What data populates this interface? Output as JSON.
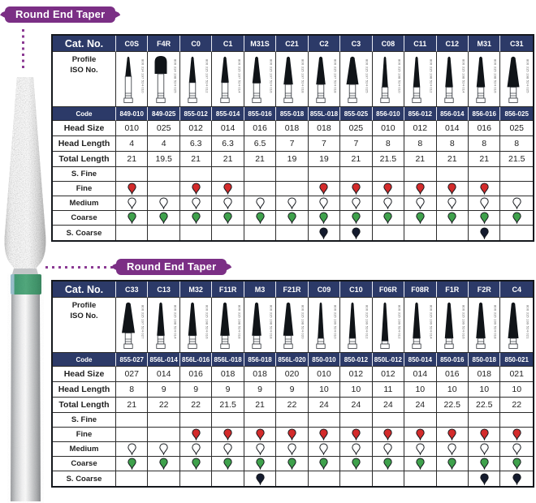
{
  "page": {
    "banner1": "Round End Taper",
    "banner2": "Round End Taper"
  },
  "colors": {
    "navy": "#2c3a68",
    "purple": "#7b2f85",
    "grit_fine": "#d32b2b",
    "grit_medium": "#ffffff",
    "grit_coarse": "#3fa14c",
    "grit_s_coarse": "#141b2e"
  },
  "row_labels": {
    "cat_no": "Cat. No.",
    "profile": "Profile",
    "iso_no": "ISO No.",
    "code": "Code",
    "head_size": "Head Size",
    "head_length": "Head Length",
    "total_length": "Total Length",
    "s_fine": "S. Fine",
    "fine": "Fine",
    "medium": "Medium",
    "coarse": "Coarse",
    "s_coarse": "S. Coarse"
  },
  "tables": [
    {
      "columns": [
        {
          "cat": "C0S",
          "iso": "806 314 197 524 010",
          "code": "849-010",
          "head_size": "010",
          "head_length": "4",
          "total_length": "21",
          "shape": "taper",
          "grits": {
            "s_fine": false,
            "fine": true,
            "medium": true,
            "coarse": true,
            "s_coarse": false
          }
        },
        {
          "cat": "F4R",
          "iso": "806 314 198 524 025",
          "code": "849-025",
          "head_size": "025",
          "head_length": "4",
          "total_length": "19.5",
          "shape": "dome",
          "grits": {
            "s_fine": false,
            "fine": false,
            "medium": true,
            "coarse": true,
            "s_coarse": false
          }
        },
        {
          "cat": "C0",
          "iso": "806 315 197 524 012",
          "code": "855-012",
          "head_size": "012",
          "head_length": "6.3",
          "total_length": "21",
          "shape": "taper",
          "grits": {
            "s_fine": false,
            "fine": true,
            "medium": true,
            "coarse": true,
            "s_coarse": false
          }
        },
        {
          "cat": "C1",
          "iso": "806 315 197 524 014",
          "code": "855-014",
          "head_size": "014",
          "head_length": "6.3",
          "total_length": "21",
          "shape": "taper",
          "grits": {
            "s_fine": false,
            "fine": true,
            "medium": true,
            "coarse": true,
            "s_coarse": false
          }
        },
        {
          "cat": "M31S",
          "iso": "806 315 197 524 016",
          "code": "855-016",
          "head_size": "016",
          "head_length": "6.5",
          "total_length": "21",
          "shape": "taper",
          "grits": {
            "s_fine": false,
            "fine": false,
            "medium": true,
            "coarse": true,
            "s_coarse": false
          }
        },
        {
          "cat": "C21",
          "iso": "806 315 197 524 018",
          "code": "855-018",
          "head_size": "018",
          "head_length": "7",
          "total_length": "19",
          "shape": "taper",
          "grits": {
            "s_fine": false,
            "fine": false,
            "medium": true,
            "coarse": true,
            "s_coarse": false
          }
        },
        {
          "cat": "C2",
          "iso": "806 315 197 524 018",
          "code": "855L-018",
          "head_size": "018",
          "head_length": "7",
          "total_length": "19",
          "shape": "taper",
          "grits": {
            "s_fine": false,
            "fine": true,
            "medium": true,
            "coarse": true,
            "s_coarse": true
          }
        },
        {
          "cat": "C3",
          "iso": "806 315 197 524 025",
          "code": "855-025",
          "head_size": "025",
          "head_length": "7",
          "total_length": "21",
          "shape": "taper",
          "grits": {
            "s_fine": false,
            "fine": true,
            "medium": true,
            "coarse": true,
            "s_coarse": true
          }
        },
        {
          "cat": "C08",
          "iso": "806 315 198 524 010",
          "code": "856-010",
          "head_size": "010",
          "head_length": "8",
          "total_length": "21.5",
          "shape": "taper",
          "grits": {
            "s_fine": false,
            "fine": true,
            "medium": true,
            "coarse": true,
            "s_coarse": false
          }
        },
        {
          "cat": "C11",
          "iso": "806 315 198 524 012",
          "code": "856-012",
          "head_size": "012",
          "head_length": "8",
          "total_length": "21",
          "shape": "taper",
          "grits": {
            "s_fine": false,
            "fine": true,
            "medium": true,
            "coarse": true,
            "s_coarse": false
          }
        },
        {
          "cat": "C12",
          "iso": "806 315 198 524 014",
          "code": "856-014",
          "head_size": "014",
          "head_length": "8",
          "total_length": "21",
          "shape": "taper",
          "grits": {
            "s_fine": false,
            "fine": true,
            "medium": true,
            "coarse": true,
            "s_coarse": false
          }
        },
        {
          "cat": "M31",
          "iso": "806 315 198 524 016",
          "code": "856-016",
          "head_size": "016",
          "head_length": "8",
          "total_length": "21",
          "shape": "taper",
          "grits": {
            "s_fine": false,
            "fine": true,
            "medium": true,
            "coarse": true,
            "s_coarse": true
          }
        },
        {
          "cat": "C31",
          "iso": "806 315 198 524 025",
          "code": "856-025",
          "head_size": "025",
          "head_length": "8",
          "total_length": "21.5",
          "shape": "taper",
          "grits": {
            "s_fine": false,
            "fine": false,
            "medium": true,
            "coarse": true,
            "s_coarse": false
          }
        }
      ]
    },
    {
      "columns": [
        {
          "cat": "C33",
          "iso": "806 315 197 524 027",
          "code": "855-027",
          "head_size": "027",
          "head_length": "8",
          "total_length": "21",
          "shape": "taper",
          "grits": {
            "s_fine": false,
            "fine": false,
            "medium": true,
            "coarse": true,
            "s_coarse": false
          }
        },
        {
          "cat": "C13",
          "iso": "806 315 198 524 014",
          "code": "856L-014",
          "head_size": "014",
          "head_length": "9",
          "total_length": "22",
          "shape": "taper",
          "grits": {
            "s_fine": false,
            "fine": false,
            "medium": true,
            "coarse": true,
            "s_coarse": false
          }
        },
        {
          "cat": "M32",
          "iso": "806 315 198 524 016",
          "code": "856L-016",
          "head_size": "016",
          "head_length": "9",
          "total_length": "22",
          "shape": "taper",
          "grits": {
            "s_fine": false,
            "fine": true,
            "medium": true,
            "coarse": true,
            "s_coarse": false
          }
        },
        {
          "cat": "F11R",
          "iso": "806 315 198 524 018",
          "code": "856L-018",
          "head_size": "018",
          "head_length": "9",
          "total_length": "21.5",
          "shape": "taper",
          "grits": {
            "s_fine": false,
            "fine": true,
            "medium": true,
            "coarse": true,
            "s_coarse": false
          }
        },
        {
          "cat": "M3",
          "iso": "806 315 198 524 018",
          "code": "856-018",
          "head_size": "018",
          "head_length": "9",
          "total_length": "21",
          "shape": "taper",
          "grits": {
            "s_fine": false,
            "fine": true,
            "medium": true,
            "coarse": true,
            "s_coarse": true
          }
        },
        {
          "cat": "F21R",
          "iso": "806 315 198 524 020",
          "code": "856L-020",
          "head_size": "020",
          "head_length": "9",
          "total_length": "22",
          "shape": "taper",
          "grits": {
            "s_fine": false,
            "fine": true,
            "medium": true,
            "coarse": true,
            "s_coarse": false
          }
        },
        {
          "cat": "C09",
          "iso": "806 315 199 524 010",
          "code": "850-010",
          "head_size": "010",
          "head_length": "10",
          "total_length": "24",
          "shape": "taper",
          "grits": {
            "s_fine": false,
            "fine": true,
            "medium": true,
            "coarse": true,
            "s_coarse": false
          }
        },
        {
          "cat": "C10",
          "iso": "806 315 199 524 012",
          "code": "850-012",
          "head_size": "012",
          "head_length": "10",
          "total_length": "24",
          "shape": "taper",
          "grits": {
            "s_fine": false,
            "fine": true,
            "medium": true,
            "coarse": true,
            "s_coarse": false
          }
        },
        {
          "cat": "F06R",
          "iso": "806 315 199 524 012",
          "code": "850L-012",
          "head_size": "012",
          "head_length": "11",
          "total_length": "24",
          "shape": "taper",
          "grits": {
            "s_fine": false,
            "fine": true,
            "medium": true,
            "coarse": true,
            "s_coarse": false
          }
        },
        {
          "cat": "F08R",
          "iso": "806 315 199 524 014",
          "code": "850-014",
          "head_size": "014",
          "head_length": "10",
          "total_length": "24",
          "shape": "taper",
          "grits": {
            "s_fine": false,
            "fine": true,
            "medium": true,
            "coarse": true,
            "s_coarse": false
          }
        },
        {
          "cat": "F1R",
          "iso": "806 315 199 524 016",
          "code": "850-016",
          "head_size": "016",
          "head_length": "10",
          "total_length": "22.5",
          "shape": "taper",
          "grits": {
            "s_fine": false,
            "fine": true,
            "medium": true,
            "coarse": true,
            "s_coarse": false
          }
        },
        {
          "cat": "F2R",
          "iso": "806 315 199 524 018",
          "code": "850-018",
          "head_size": "018",
          "head_length": "10",
          "total_length": "22.5",
          "shape": "taper",
          "grits": {
            "s_fine": false,
            "fine": true,
            "medium": true,
            "coarse": true,
            "s_coarse": true
          }
        },
        {
          "cat": "C4",
          "iso": "806 315 199 524 021",
          "code": "850-021",
          "head_size": "021",
          "head_length": "10",
          "total_length": "22",
          "shape": "taper",
          "grits": {
            "s_fine": false,
            "fine": true,
            "medium": true,
            "coarse": true,
            "s_coarse": true
          }
        }
      ]
    }
  ]
}
